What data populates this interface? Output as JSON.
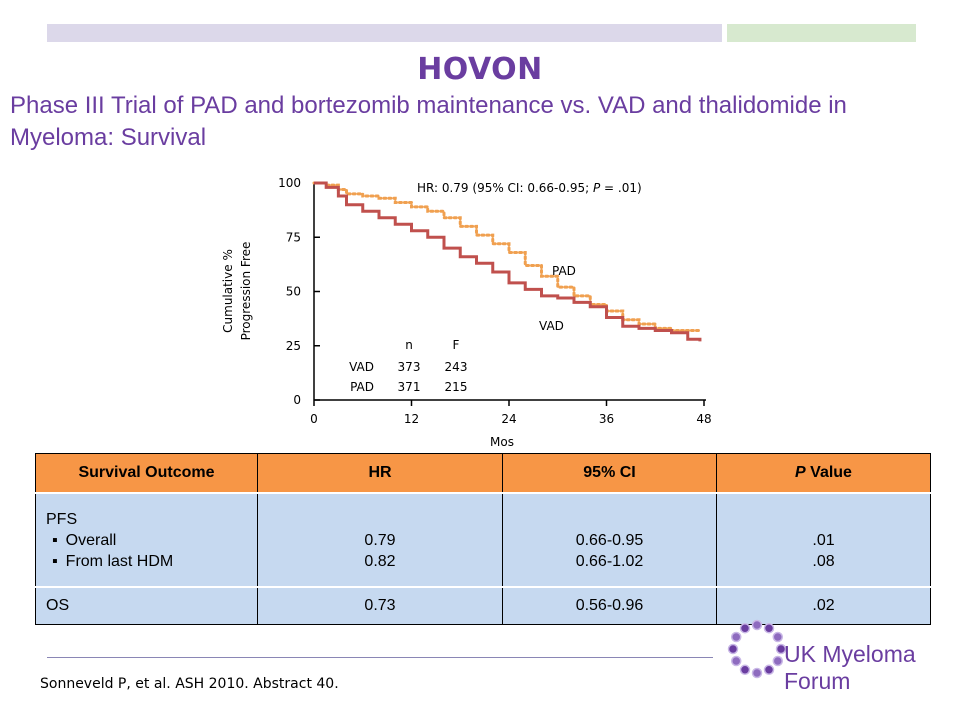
{
  "header": {
    "org": "HOVON",
    "title": "Phase III Trial of PAD and bortezomib maintenance vs. VAD and thalidomide in Myeloma: Survival"
  },
  "chart_data": {
    "type": "line",
    "ylabel": "Cumulative % Progression Free",
    "xlabel": "Mos",
    "xlim": [
      0,
      48
    ],
    "ylim": [
      0,
      100
    ],
    "x_ticks": [
      "0",
      "12",
      "24",
      "36",
      "48"
    ],
    "y_ticks": [
      "0",
      "25",
      "50",
      "75",
      "100"
    ],
    "annotation": "HR: 0.79 (95% CI: 0.66-0.95; P = .01)",
    "series": [
      {
        "name": "PAD",
        "color": "#f0a050",
        "style": "dotted",
        "x": [
          0,
          1.5,
          3,
          4,
          6,
          8,
          10,
          12,
          14,
          16,
          18,
          20,
          22,
          24,
          26,
          28,
          30,
          32,
          34,
          36,
          38,
          40,
          42,
          44,
          46,
          47.5
        ],
        "y": [
          100,
          99,
          97,
          95,
          94,
          93,
          91,
          89,
          87,
          84,
          80,
          76,
          72,
          68,
          62,
          57,
          52,
          48,
          44,
          41,
          37,
          35,
          33,
          32,
          32,
          32
        ]
      },
      {
        "name": "VAD",
        "color": "#c0504d",
        "style": "solid",
        "x": [
          0,
          1.5,
          3,
          4,
          6,
          8,
          10,
          12,
          14,
          16,
          18,
          20,
          22,
          24,
          26,
          28,
          30,
          32,
          34,
          36,
          38,
          40,
          42,
          44,
          46,
          47.5
        ],
        "y": [
          100,
          98,
          94,
          90,
          87,
          84,
          81,
          78,
          75,
          70,
          66,
          63,
          59,
          54,
          51,
          48,
          47,
          45,
          43,
          38,
          34,
          33,
          32,
          31,
          28,
          27
        ]
      }
    ],
    "risk_table": {
      "headers": [
        "n",
        "F"
      ],
      "rows": [
        {
          "label": "VAD",
          "n": "373",
          "f": "243"
        },
        {
          "label": "PAD",
          "n": "371",
          "f": "215"
        }
      ]
    }
  },
  "table": {
    "headers": {
      "outcome": "Survival Outcome",
      "hr": "HR",
      "ci": "95% CI",
      "p_italic": "P",
      "p_rest": " Value"
    },
    "pfs": {
      "label": "PFS",
      "overall_label": "Overall",
      "hdm_label": "From last HDM",
      "hr_overall": "0.79",
      "hr_hdm": "0.82",
      "ci_overall": "0.66-0.95",
      "ci_hdm": "0.66-1.02",
      "p_overall": ".01",
      "p_hdm": ".08"
    },
    "os": {
      "label": "OS",
      "hr": "0.73",
      "ci": "0.56-0.96",
      "p": ".02"
    }
  },
  "footer": {
    "citation": "Sonneveld P, et al. ASH 2010. Abstract 40.",
    "logo_text": "UK Myeloma Forum"
  }
}
